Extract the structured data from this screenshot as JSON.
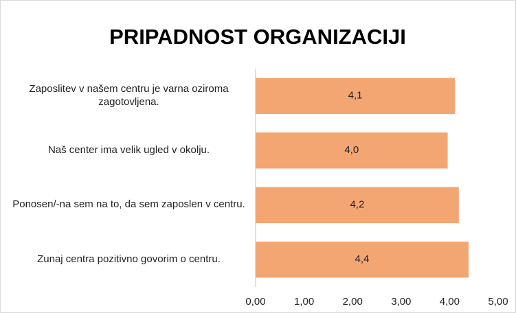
{
  "chart_data": {
    "type": "bar",
    "orientation": "horizontal",
    "title": "PRIPADNOST ORGANIZACIJI",
    "categories": [
      "Zaposlitev v našem centru je varna oziroma zagotovljena.",
      "Naš center ima velik ugled v okolju.",
      "Ponosen/-na sem na to, da sem zaposlen v centru.",
      "Zunaj centra pozitivno govorim o centru."
    ],
    "values": [
      4.11,
      3.96,
      4.19,
      4.39
    ],
    "value_labels": [
      "4,1",
      "4,0",
      "4,2",
      "4,4"
    ],
    "color": "#F4A672",
    "xlim": [
      0,
      5
    ],
    "xticks": [
      {
        "value": 0,
        "label": "0,00"
      },
      {
        "value": 1,
        "label": "1,00"
      },
      {
        "value": 2,
        "label": "2,00"
      },
      {
        "value": 3,
        "label": "3,00"
      },
      {
        "value": 4,
        "label": "4,00"
      },
      {
        "value": 5,
        "label": "5,00"
      }
    ],
    "grid": false
  }
}
